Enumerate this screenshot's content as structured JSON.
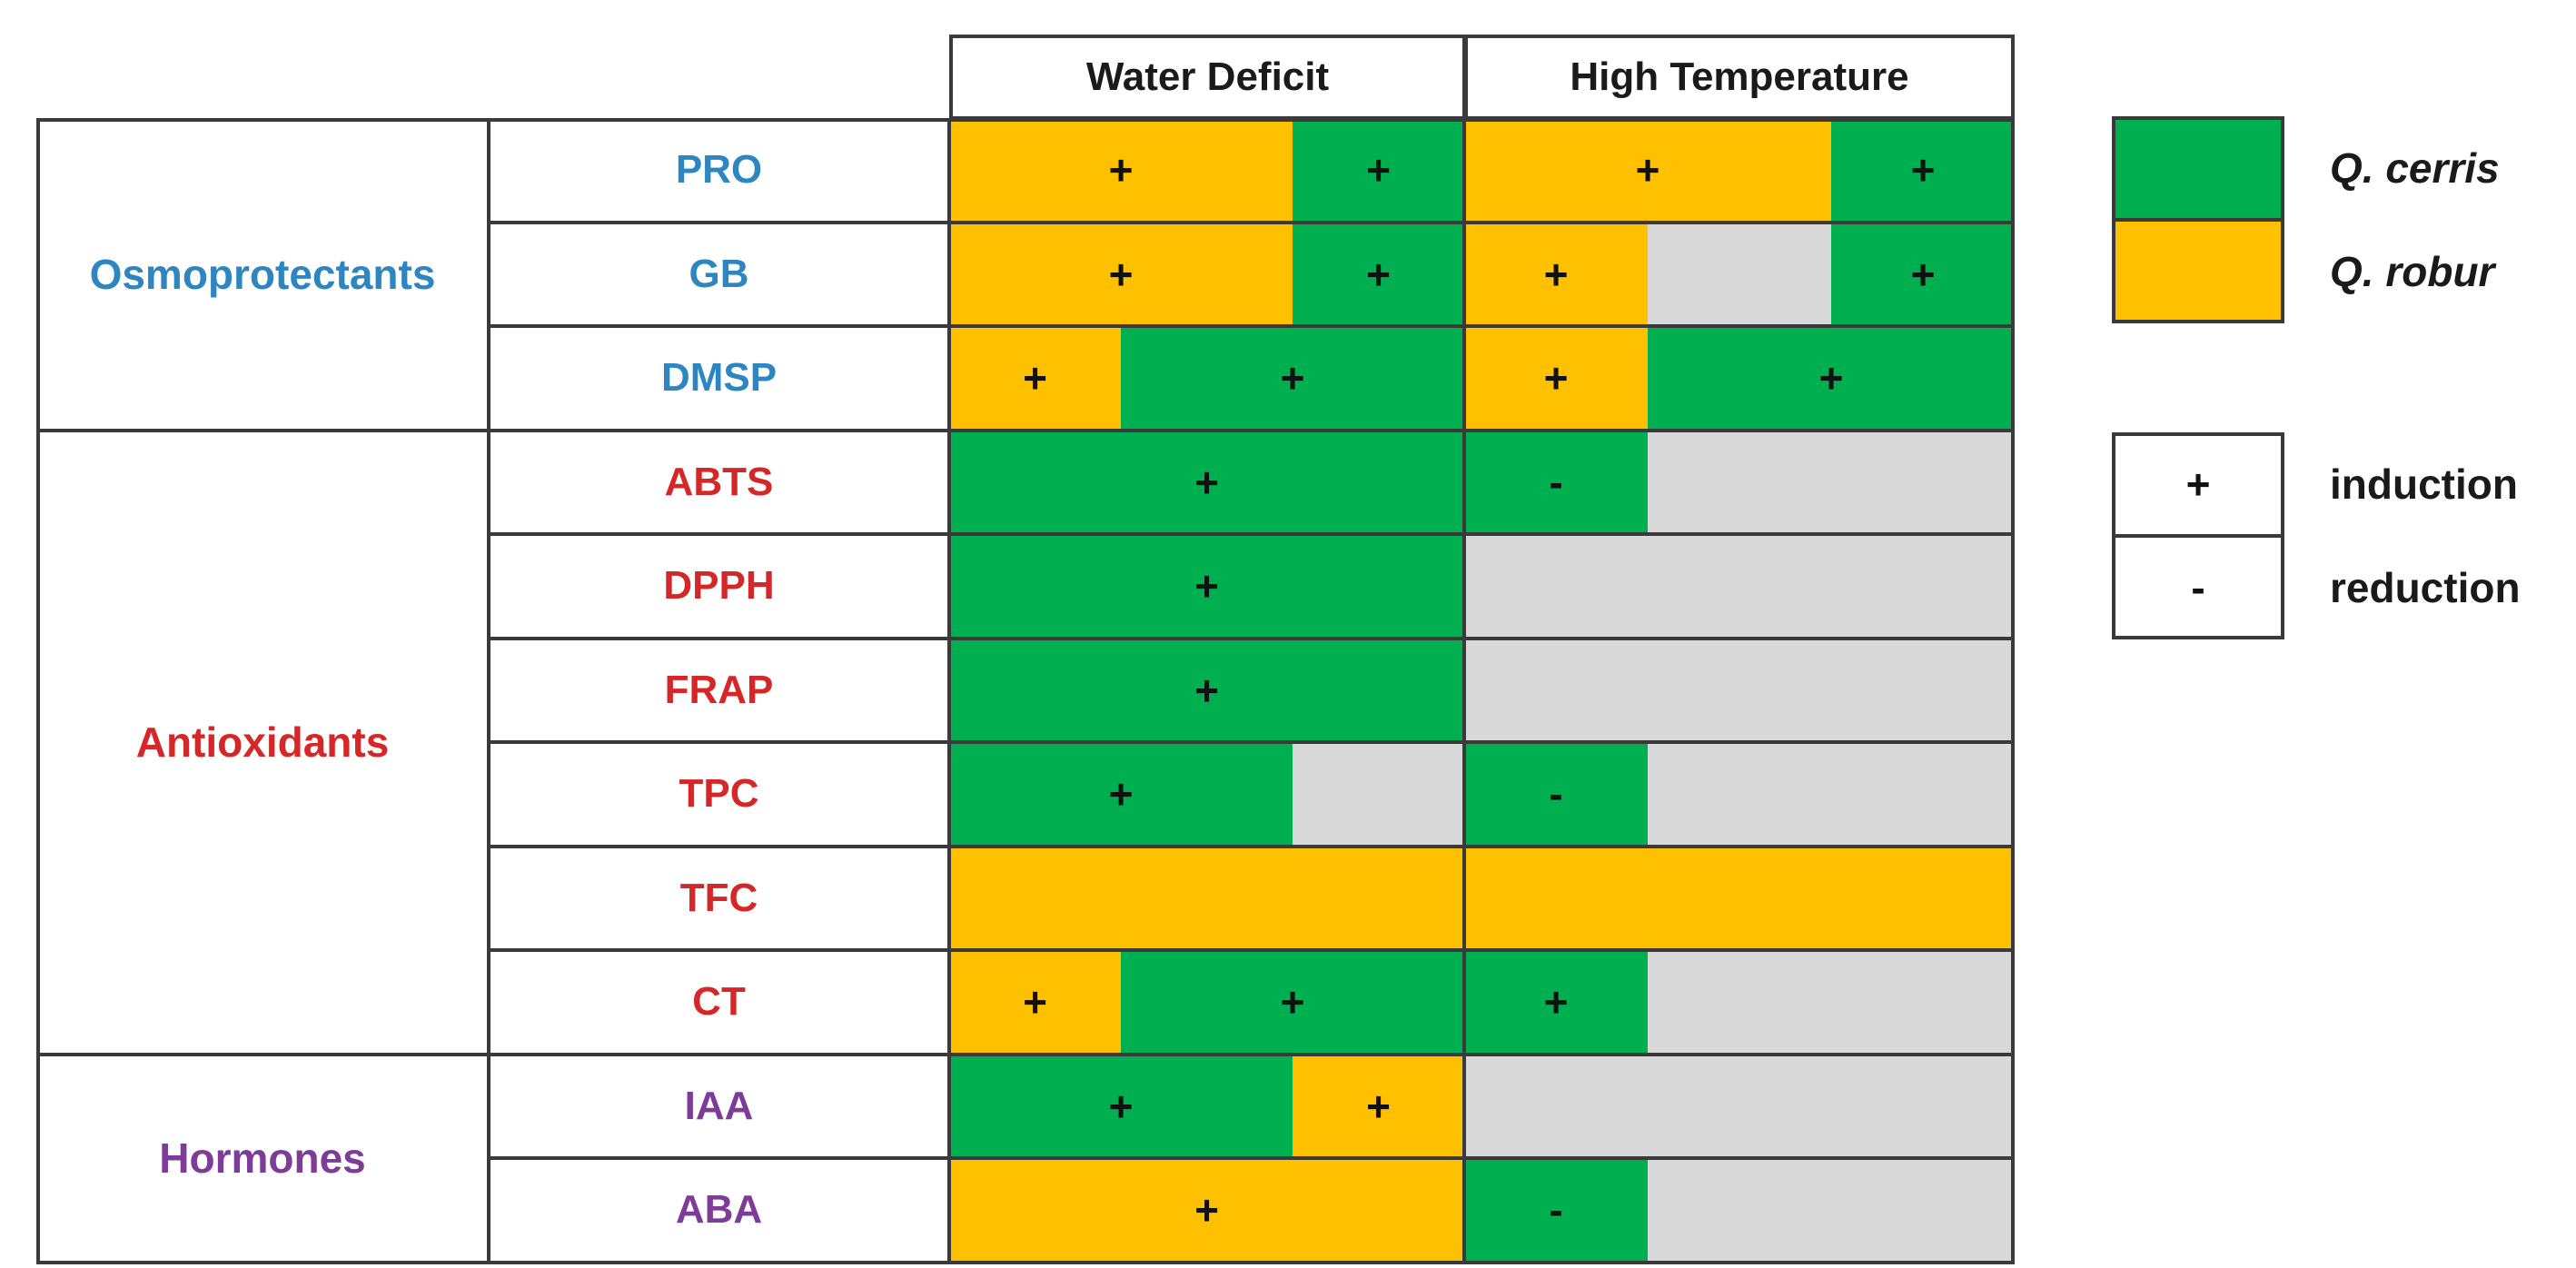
{
  "columns": [
    "Water Deficit",
    "High Temperature"
  ],
  "groups": [
    {
      "label": "Osmoprotectants",
      "color": "#2e86c1"
    },
    {
      "label": "Antioxidants",
      "color": "#d62728"
    },
    {
      "label": "Hormones",
      "color": "#7d3c98"
    }
  ],
  "rows": [
    {
      "label": "PRO",
      "group": 0,
      "wd": [
        {
          "c": "Y",
          "span": 2,
          "sign": "+"
        },
        {
          "c": "G",
          "span": 1,
          "sign": "+"
        }
      ],
      "ht": [
        {
          "c": "Y",
          "span": 2,
          "sign": "+"
        },
        {
          "c": "G",
          "span": 1,
          "sign": "+"
        }
      ]
    },
    {
      "label": "GB",
      "group": 0,
      "wd": [
        {
          "c": "Y",
          "span": 2,
          "sign": "+"
        },
        {
          "c": "G",
          "span": 1,
          "sign": "+"
        }
      ],
      "ht": [
        {
          "c": "Y",
          "span": 1,
          "sign": "+"
        },
        {
          "c": "N",
          "span": 1,
          "sign": ""
        },
        {
          "c": "G",
          "span": 1,
          "sign": "+"
        }
      ]
    },
    {
      "label": "DMSP",
      "group": 0,
      "wd": [
        {
          "c": "Y",
          "span": 1,
          "sign": "+"
        },
        {
          "c": "G",
          "span": 2,
          "sign": "+"
        }
      ],
      "ht": [
        {
          "c": "Y",
          "span": 1,
          "sign": "+"
        },
        {
          "c": "G",
          "span": 2,
          "sign": "+"
        }
      ]
    },
    {
      "label": "ABTS",
      "group": 1,
      "wd": [
        {
          "c": "G",
          "span": 3,
          "sign": "+"
        }
      ],
      "ht": [
        {
          "c": "G",
          "span": 1,
          "sign": "-"
        },
        {
          "c": "N",
          "span": 2,
          "sign": ""
        }
      ]
    },
    {
      "label": "DPPH",
      "group": 1,
      "wd": [
        {
          "c": "G",
          "span": 3,
          "sign": "+"
        }
      ],
      "ht": [
        {
          "c": "N",
          "span": 3,
          "sign": ""
        }
      ]
    },
    {
      "label": "FRAP",
      "group": 1,
      "wd": [
        {
          "c": "G",
          "span": 3,
          "sign": "+"
        }
      ],
      "ht": [
        {
          "c": "N",
          "span": 3,
          "sign": ""
        }
      ]
    },
    {
      "label": "TPC",
      "group": 1,
      "wd": [
        {
          "c": "G",
          "span": 2,
          "sign": "+"
        },
        {
          "c": "N",
          "span": 1,
          "sign": ""
        }
      ],
      "ht": [
        {
          "c": "G",
          "span": 1,
          "sign": "-"
        },
        {
          "c": "N",
          "span": 2,
          "sign": ""
        }
      ]
    },
    {
      "label": "TFC",
      "group": 1,
      "wd": [
        {
          "c": "Y",
          "span": 3,
          "sign": ""
        }
      ],
      "ht": [
        {
          "c": "Y",
          "span": 3,
          "sign": ""
        }
      ]
    },
    {
      "label": "CT",
      "group": 1,
      "wd": [
        {
          "c": "Y",
          "span": 1,
          "sign": "+"
        },
        {
          "c": "G",
          "span": 2,
          "sign": "+"
        }
      ],
      "ht": [
        {
          "c": "G",
          "span": 1,
          "sign": "+"
        },
        {
          "c": "N",
          "span": 2,
          "sign": ""
        }
      ]
    },
    {
      "label": "IAA",
      "group": 2,
      "wd": [
        {
          "c": "G",
          "span": 2,
          "sign": "+"
        },
        {
          "c": "Y",
          "span": 1,
          "sign": "+"
        }
      ],
      "ht": [
        {
          "c": "N",
          "span": 3,
          "sign": ""
        }
      ]
    },
    {
      "label": "ABA",
      "group": 2,
      "wd": [
        {
          "c": "Y",
          "span": 3,
          "sign": "+"
        }
      ],
      "ht": [
        {
          "c": "G",
          "span": 1,
          "sign": "-"
        },
        {
          "c": "N",
          "span": 2,
          "sign": ""
        }
      ]
    }
  ],
  "colors": {
    "G": "#00b050",
    "Y": "#ffc000",
    "N": "#d9d9d9"
  },
  "legend": {
    "species": [
      {
        "color": "#00b050",
        "label": "Q. cerris"
      },
      {
        "color": "#ffc000",
        "label": "Q. robur"
      }
    ],
    "signs": [
      {
        "symbol": "+",
        "label": "induction"
      },
      {
        "symbol": "-",
        "label": "reduction"
      }
    ]
  }
}
